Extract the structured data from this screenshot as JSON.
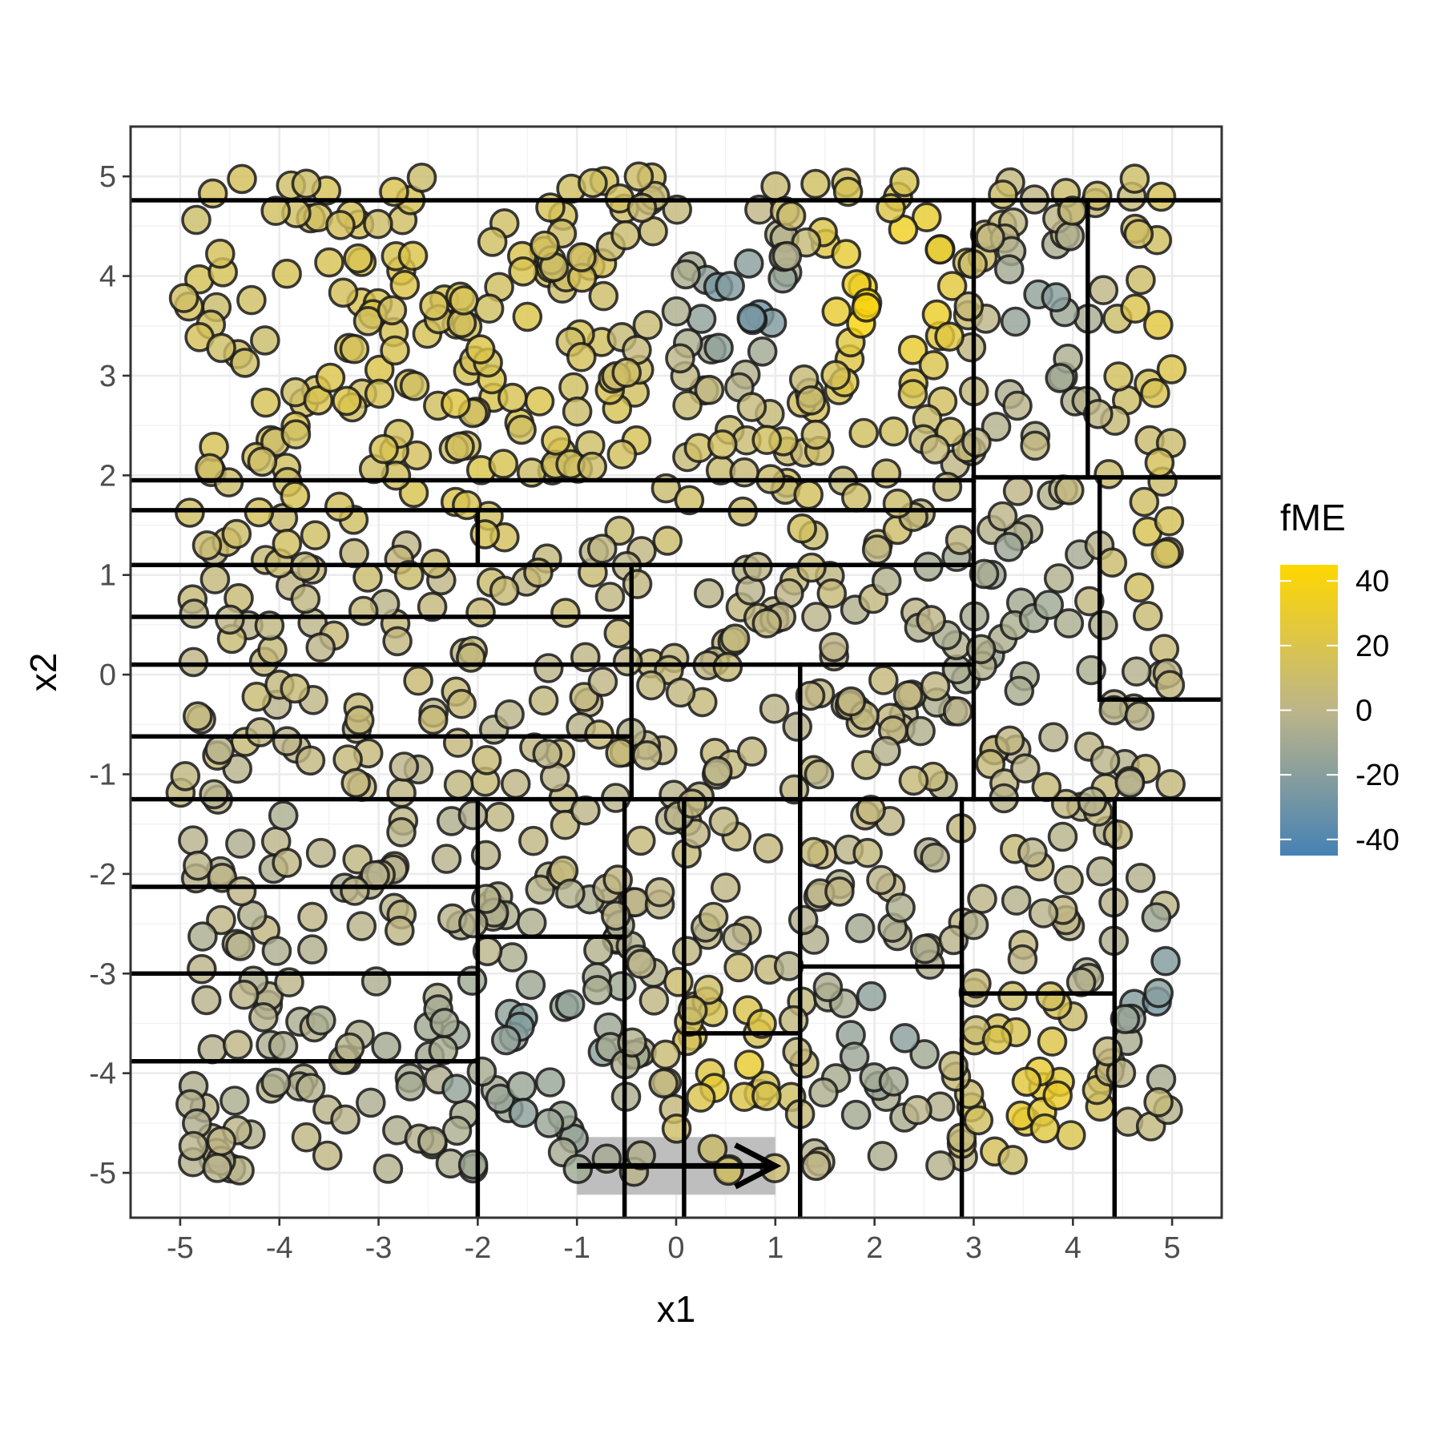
{
  "chart_data": {
    "type": "scatter",
    "title": "",
    "xlabel": "x1",
    "ylabel": "x2",
    "xlim": [
      -5.5,
      5.5
    ],
    "ylim": [
      -5.45,
      5.5
    ],
    "x_ticks": [
      -5,
      -4,
      -3,
      -2,
      -1,
      0,
      1,
      2,
      3,
      4,
      5
    ],
    "y_ticks": [
      -5,
      -4,
      -3,
      -2,
      -1,
      0,
      1,
      2,
      3,
      4,
      5
    ],
    "x_tick_labels": [
      "-5",
      "-4",
      "-3",
      "-2",
      "-1",
      "0",
      "1",
      "2",
      "3",
      "4",
      "5"
    ],
    "y_tick_labels": [
      "-5",
      "-4",
      "-3",
      "-2",
      "-1",
      "0",
      "1",
      "2",
      "3",
      "4",
      "5"
    ],
    "grid": true,
    "color_scale": {
      "name": "fME",
      "min": -45,
      "max": 45,
      "low_color": "#4682b4",
      "mid_color": "#bdb58a",
      "high_color": "#ffd700",
      "ticks": [
        40,
        20,
        0,
        -20,
        -40
      ],
      "tick_labels": [
        "40",
        "20",
        "0",
        "-20",
        "-40"
      ],
      "position": "right"
    },
    "step_arrow": {
      "from": [
        -1,
        -4.93
      ],
      "to": [
        1,
        -4.93
      ],
      "band_color": "#bebebe"
    },
    "partition_lines": [
      {
        "x1": -5.5,
        "y1": 4.76,
        "x2": 5.5,
        "y2": 4.76
      },
      {
        "x1": 3.0,
        "y1": 4.76,
        "x2": 3.0,
        "y2": -1.25
      },
      {
        "x1": 4.15,
        "y1": 4.76,
        "x2": 4.15,
        "y2": 1.98
      },
      {
        "x1": -5.5,
        "y1": 1.95,
        "x2": 3.0,
        "y2": 1.95
      },
      {
        "x1": 3.0,
        "y1": 1.98,
        "x2": 5.5,
        "y2": 1.98
      },
      {
        "x1": 4.27,
        "y1": 1.98,
        "x2": 4.27,
        "y2": -0.25
      },
      {
        "x1": 4.27,
        "y1": -0.25,
        "x2": 5.5,
        "y2": -0.25
      },
      {
        "x1": -5.5,
        "y1": 1.65,
        "x2": 3.0,
        "y2": 1.65
      },
      {
        "x1": -2.0,
        "y1": 1.65,
        "x2": -2.0,
        "y2": 1.1
      },
      {
        "x1": -5.5,
        "y1": 1.1,
        "x2": 3.0,
        "y2": 1.1
      },
      {
        "x1": -0.45,
        "y1": 1.1,
        "x2": -0.45,
        "y2": -1.25
      },
      {
        "x1": -5.5,
        "y1": 0.58,
        "x2": -0.45,
        "y2": 0.58
      },
      {
        "x1": -5.5,
        "y1": 0.1,
        "x2": 3.0,
        "y2": 0.1
      },
      {
        "x1": 1.25,
        "y1": 0.1,
        "x2": 1.25,
        "y2": -5.45
      },
      {
        "x1": -5.5,
        "y1": -0.62,
        "x2": -0.45,
        "y2": -0.62
      },
      {
        "x1": -5.5,
        "y1": -1.25,
        "x2": 5.5,
        "y2": -1.25
      },
      {
        "x1": -2.0,
        "y1": -1.25,
        "x2": -2.0,
        "y2": -5.45
      },
      {
        "x1": -5.5,
        "y1": -2.13,
        "x2": -2.0,
        "y2": -2.13
      },
      {
        "x1": -5.5,
        "y1": -3.0,
        "x2": -2.0,
        "y2": -3.0
      },
      {
        "x1": -5.5,
        "y1": -3.88,
        "x2": -2.0,
        "y2": -3.88
      },
      {
        "x1": -2.0,
        "y1": -2.63,
        "x2": -0.52,
        "y2": -2.63
      },
      {
        "x1": -0.52,
        "y1": -1.25,
        "x2": -0.52,
        "y2": -5.45
      },
      {
        "x1": 0.08,
        "y1": -1.25,
        "x2": 0.08,
        "y2": -5.45
      },
      {
        "x1": 0.08,
        "y1": -3.6,
        "x2": 1.25,
        "y2": -3.6
      },
      {
        "x1": 1.25,
        "y1": -2.93,
        "x2": 2.88,
        "y2": -2.93
      },
      {
        "x1": 2.88,
        "y1": -1.25,
        "x2": 2.88,
        "y2": -5.45
      },
      {
        "x1": 2.88,
        "y1": -3.2,
        "x2": 4.42,
        "y2": -3.2
      },
      {
        "x1": 4.42,
        "y1": -1.25,
        "x2": 4.42,
        "y2": -5.45
      }
    ]
  }
}
